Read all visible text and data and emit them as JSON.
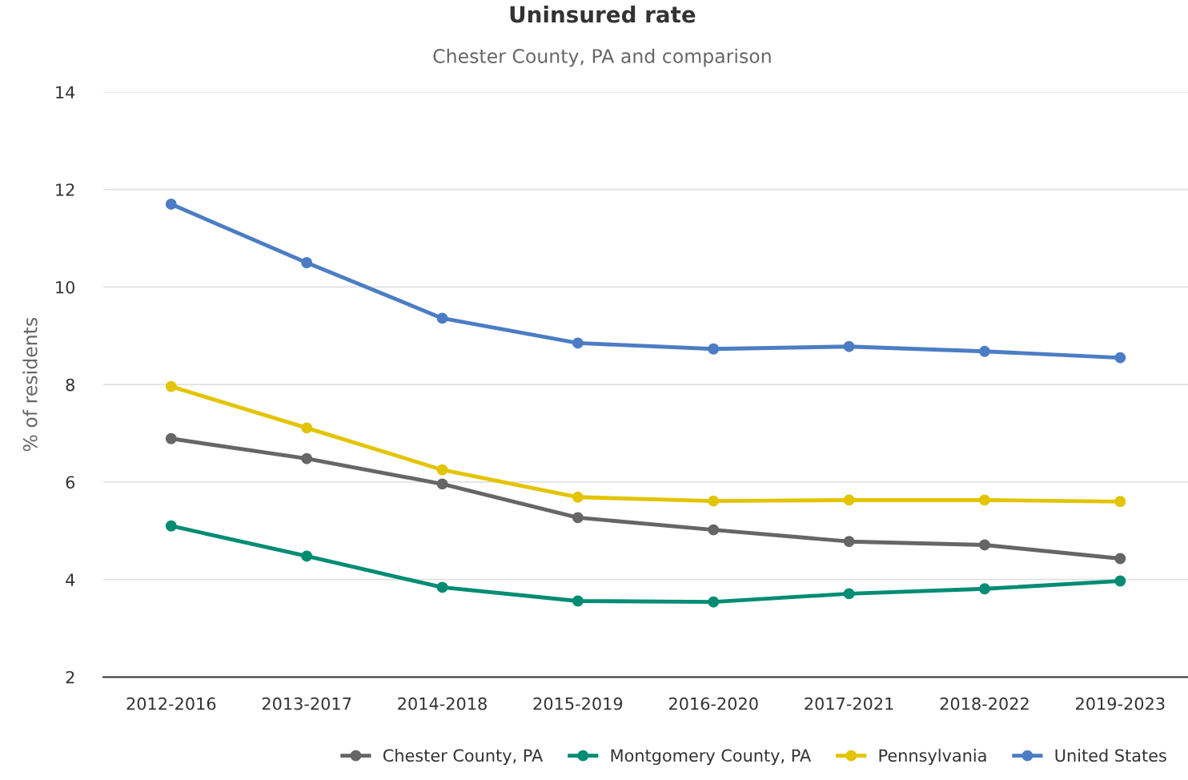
{
  "chart_data": {
    "type": "line",
    "title": "Uninsured rate",
    "subtitle": "Chester County, PA and comparison",
    "ylabel": "% of residents",
    "categories": [
      "2012-2016",
      "2013-2017",
      "2014-2018",
      "2015-2019",
      "2016-2020",
      "2017-2021",
      "2018-2022",
      "2019-2023"
    ],
    "series": [
      {
        "name": "Chester County, PA",
        "color": "#666666",
        "values": [
          6.89,
          6.48,
          5.96,
          5.27,
          5.02,
          4.78,
          4.71,
          4.43
        ]
      },
      {
        "name": "Montgomery County, PA",
        "color": "#008c73",
        "values": [
          5.1,
          4.48,
          3.84,
          3.56,
          3.54,
          3.71,
          3.81,
          3.97
        ]
      },
      {
        "name": "Pennsylvania",
        "color": "#e2c400",
        "values": [
          7.96,
          7.11,
          6.25,
          5.69,
          5.61,
          5.63,
          5.63,
          5.6
        ]
      },
      {
        "name": "United States",
        "color": "#4c7dc4",
        "values": [
          11.7,
          10.5,
          9.36,
          8.85,
          8.73,
          8.78,
          8.68,
          8.55
        ]
      }
    ],
    "ylim": [
      2,
      14
    ],
    "yticks": [
      2,
      4,
      6,
      8,
      10,
      12,
      14
    ],
    "grid": "y",
    "legend": "bottom",
    "marker": "circle",
    "line_style": "solid"
  }
}
